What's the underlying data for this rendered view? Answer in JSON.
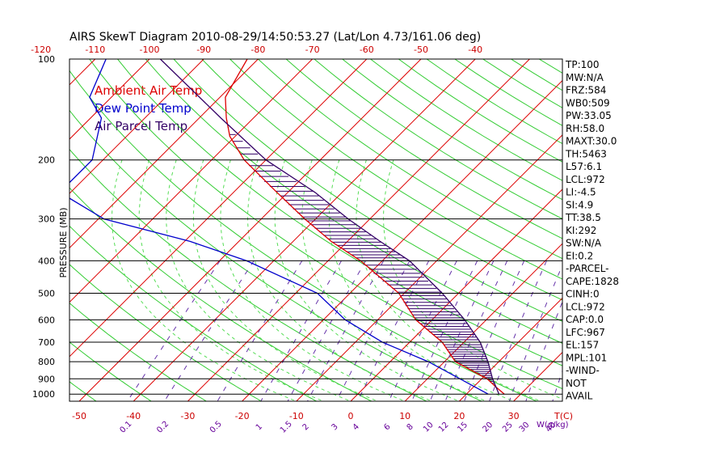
{
  "chart_data": {
    "type": "skewt",
    "title": "AIRS SkewT Diagram 2010-08-29/14:50:53.27 (Lat/Lon 4.73/161.06 deg)",
    "ylabel": "PRESSURE (MB)",
    "xlabel": "T(C)",
    "mixing_label": "W(g/kg)",
    "pressure_ticks": [
      100,
      200,
      300,
      400,
      500,
      600,
      700,
      800,
      900,
      1000
    ],
    "top_temp_ticks": [
      -120,
      -110,
      -100,
      -90,
      -80,
      -70,
      -60,
      -50,
      -40
    ],
    "bottom_temp_ticks": [
      -50,
      -40,
      -30,
      -20,
      -10,
      0,
      10,
      20,
      30
    ],
    "mixing_ratio_ticks": [
      "0.1",
      "0.2",
      "0.5",
      "1",
      "1.5",
      "2",
      "3",
      "4",
      "6",
      "8",
      "10",
      "12",
      "15",
      "20",
      "25",
      "30",
      "40"
    ],
    "legend": [
      {
        "name": "Ambient Air Temp",
        "color": "#dd0000"
      },
      {
        "name": "Dew Point Temp",
        "color": "#0000cc"
      },
      {
        "name": "Air Parcel Temp",
        "color": "#330066"
      }
    ],
    "series": [
      {
        "name": "Ambient Air Temp",
        "points": [
          [
            100,
            -82
          ],
          [
            130,
            -79
          ],
          [
            150,
            -75
          ],
          [
            170,
            -71
          ],
          [
            200,
            -64
          ],
          [
            250,
            -52
          ],
          [
            300,
            -42
          ],
          [
            350,
            -33
          ],
          [
            400,
            -24
          ],
          [
            500,
            -11
          ],
          [
            600,
            -3
          ],
          [
            700,
            6
          ],
          [
            800,
            12
          ],
          [
            900,
            21
          ],
          [
            950,
            24
          ],
          [
            1000,
            27
          ]
        ]
      },
      {
        "name": "Dew Point Temp",
        "points": [
          [
            100,
            -108
          ],
          [
            130,
            -104
          ],
          [
            150,
            -98
          ],
          [
            200,
            -92
          ],
          [
            250,
            -92
          ],
          [
            300,
            -79
          ],
          [
            350,
            -59
          ],
          [
            400,
            -45
          ],
          [
            500,
            -26
          ],
          [
            600,
            -16
          ],
          [
            700,
            -5
          ],
          [
            800,
            7
          ],
          [
            900,
            16
          ],
          [
            1000,
            24
          ]
        ]
      },
      {
        "name": "Air Parcel Temp",
        "points": [
          [
            100,
            -98
          ],
          [
            150,
            -76
          ],
          [
            200,
            -60
          ],
          [
            250,
            -45
          ],
          [
            300,
            -34
          ],
          [
            350,
            -24
          ],
          [
            400,
            -15
          ],
          [
            500,
            -3
          ],
          [
            600,
            6
          ],
          [
            700,
            13
          ],
          [
            800,
            18
          ],
          [
            900,
            22
          ],
          [
            1000,
            26
          ]
        ]
      }
    ]
  },
  "indices": [
    "TP:100",
    "MW:N/A",
    "FRZ:584",
    "WB0:509",
    "PW:33.05",
    "RH:58.0",
    "MAXT:30.0",
    "TH:5463",
    "L57:6.1",
    "LCL:972",
    "LI:-4.5",
    "SI:4.9",
    "TT:38.5",
    "KI:292",
    "SW:N/A",
    "EI:0.2",
    "-PARCEL-",
    "CAPE:1828",
    "CINH:0",
    "LCL:972",
    "CAP:0.0",
    "LFC:967",
    "EL:157",
    "MPL:101",
    "-WIND-",
    "NOT",
    "AVAIL"
  ]
}
